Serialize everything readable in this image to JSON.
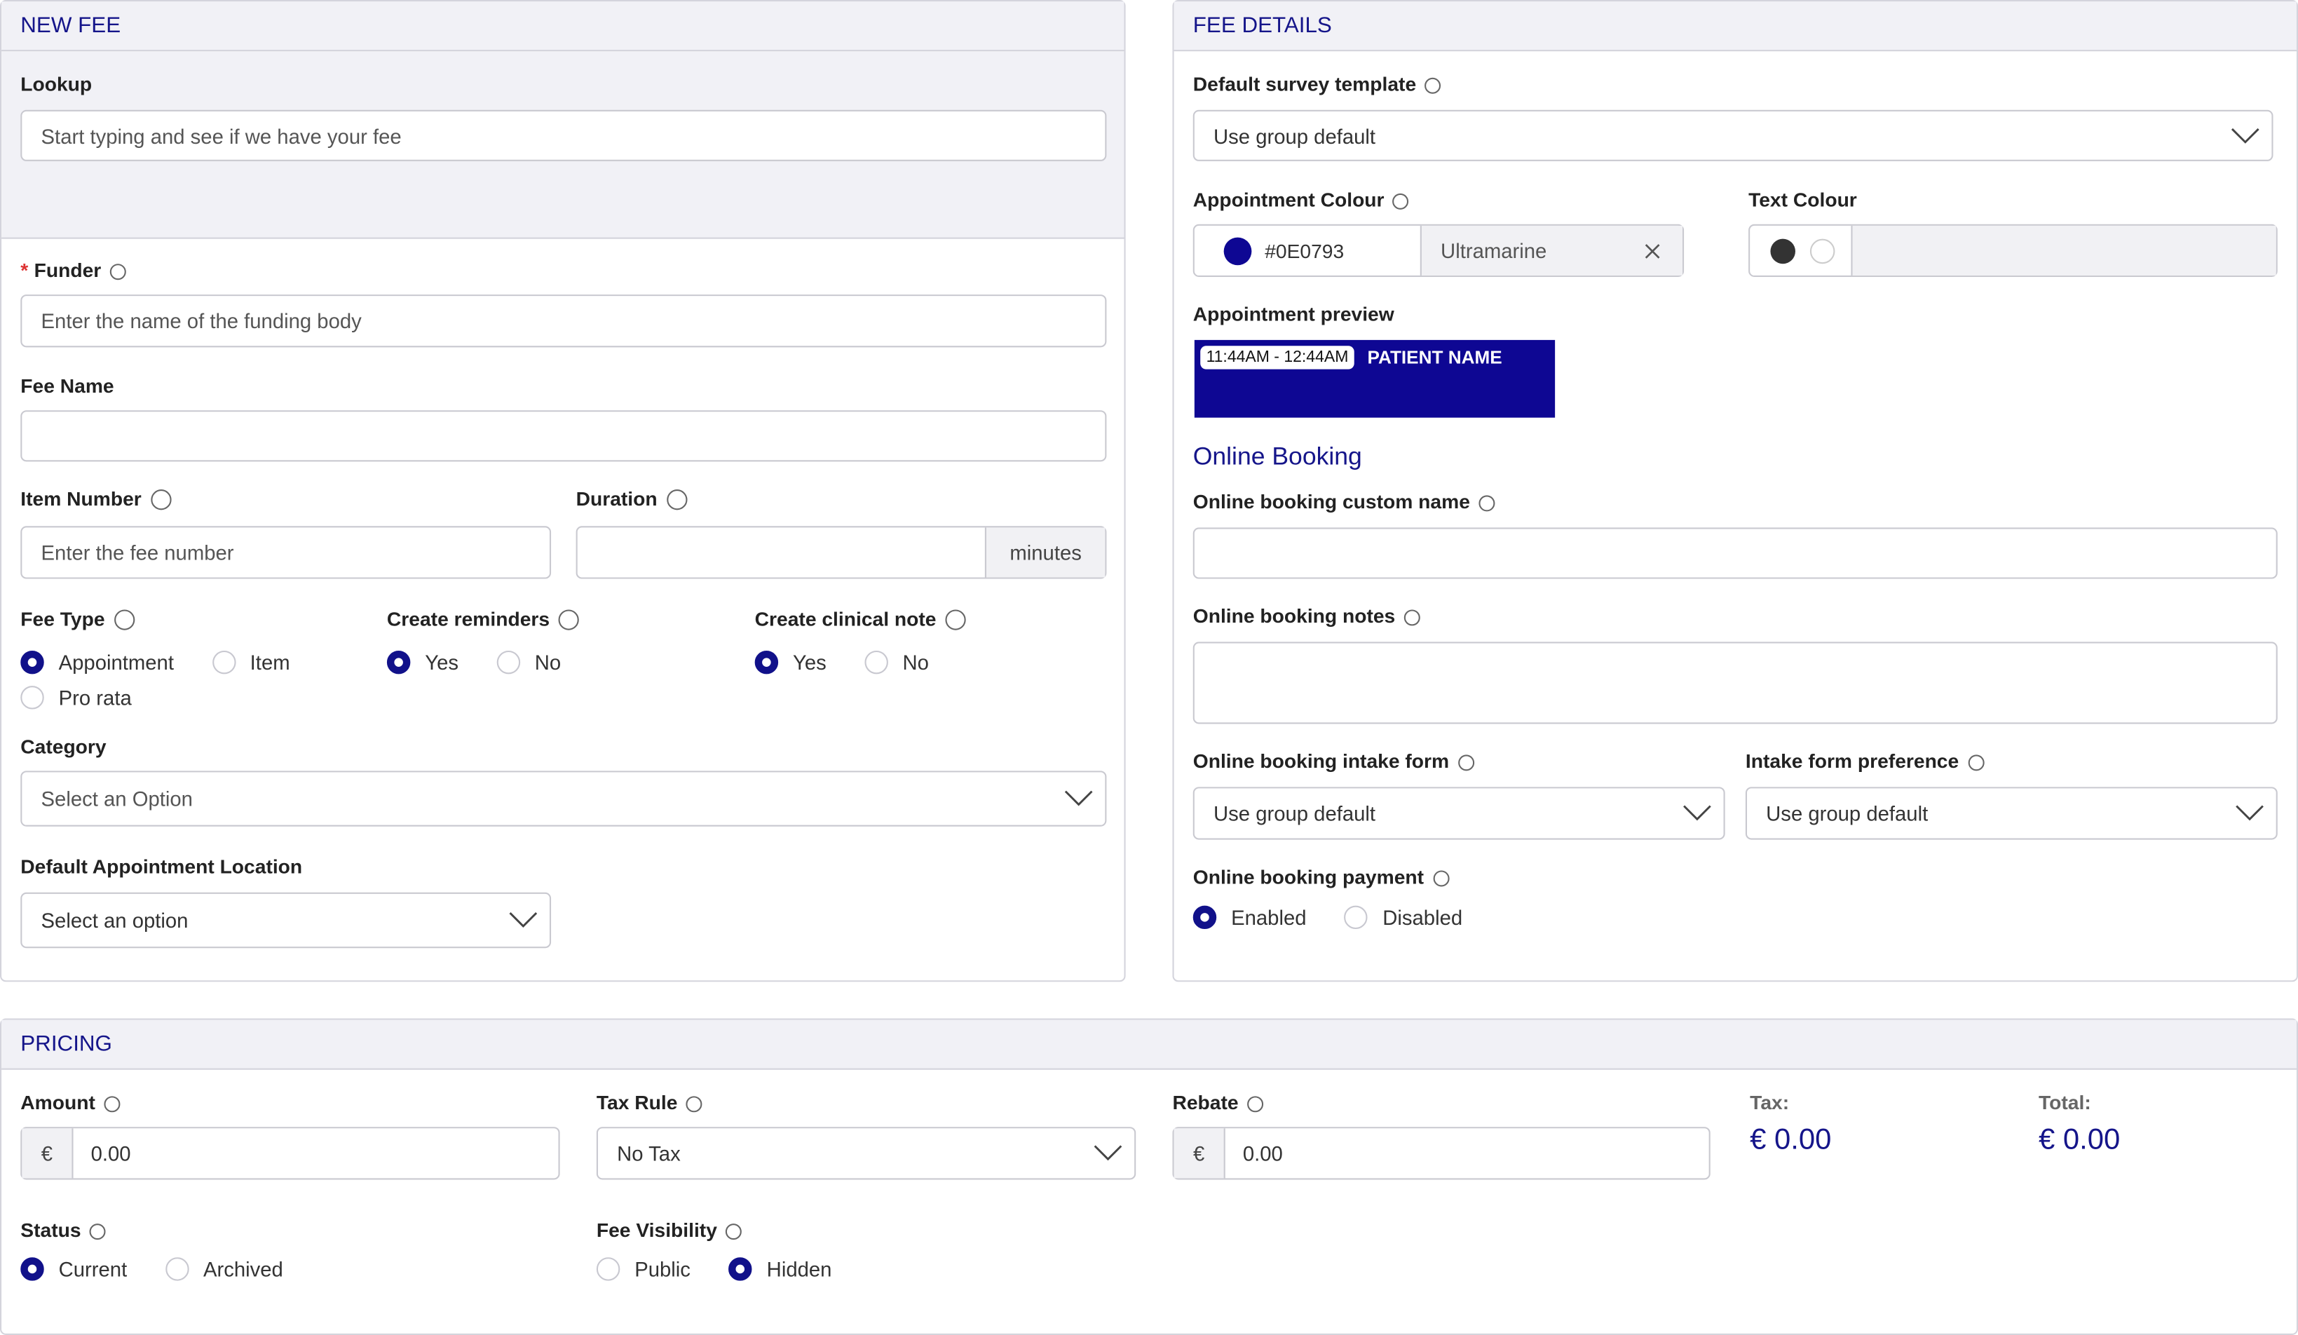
{
  "new_fee": {
    "title": "NEW FEE",
    "lookup": {
      "label": "Lookup",
      "placeholder": "Start typing and see if we have your fee"
    },
    "funder": {
      "required": "*",
      "label": "Funder",
      "placeholder": "Enter the name of the funding body"
    },
    "fee_name": {
      "label": "Fee Name"
    },
    "item_number": {
      "label": "Item Number",
      "placeholder": "Enter the fee number"
    },
    "duration": {
      "label": "Duration",
      "unit": "minutes"
    },
    "fee_type": {
      "label": "Fee Type",
      "options": [
        "Appointment",
        "Item",
        "Pro rata"
      ],
      "selected": 0
    },
    "create_reminders": {
      "label": "Create reminders",
      "options": [
        "Yes",
        "No"
      ],
      "selected": 0
    },
    "create_clinical_note": {
      "label": "Create clinical note",
      "options": [
        "Yes",
        "No"
      ],
      "selected": 0
    },
    "category": {
      "label": "Category",
      "placeholder": "Select an Option"
    },
    "default_location": {
      "label": "Default Appointment Location",
      "placeholder": "Select an option"
    }
  },
  "fee_details": {
    "title": "FEE DETAILS",
    "survey_template": {
      "label": "Default survey template",
      "value": "Use group default"
    },
    "appointment_colour": {
      "label": "Appointment Colour",
      "hex": "#0E0793",
      "name": "Ultramarine"
    },
    "text_colour": {
      "label": "Text Colour"
    },
    "appointment_preview": {
      "label": "Appointment preview",
      "time": "11:44AM - 12:44AM",
      "patient": "PATIENT NAME"
    },
    "online_booking": {
      "heading": "Online Booking",
      "custom_name": {
        "label": "Online booking custom name"
      },
      "notes": {
        "label": "Online booking notes"
      },
      "intake_form": {
        "label": "Online booking intake form",
        "value": "Use group default"
      },
      "intake_preference": {
        "label": "Intake form preference",
        "value": "Use group default"
      },
      "payment": {
        "label": "Online booking payment",
        "options": [
          "Enabled",
          "Disabled"
        ],
        "selected": 0
      }
    }
  },
  "pricing": {
    "title": "PRICING",
    "amount": {
      "label": "Amount",
      "currency": "€",
      "value": "0.00"
    },
    "tax_rule": {
      "label": "Tax Rule",
      "value": "No Tax"
    },
    "rebate": {
      "label": "Rebate",
      "currency": "€",
      "value": "0.00"
    },
    "tax": {
      "label": "Tax:",
      "value": "€ 0.00"
    },
    "total": {
      "label": "Total:",
      "value": "€ 0.00"
    },
    "status": {
      "label": "Status",
      "options": [
        "Current",
        "Archived"
      ],
      "selected": 0
    },
    "fee_visibility": {
      "label": "Fee Visibility",
      "options": [
        "Public",
        "Hidden"
      ],
      "selected": 1
    }
  }
}
